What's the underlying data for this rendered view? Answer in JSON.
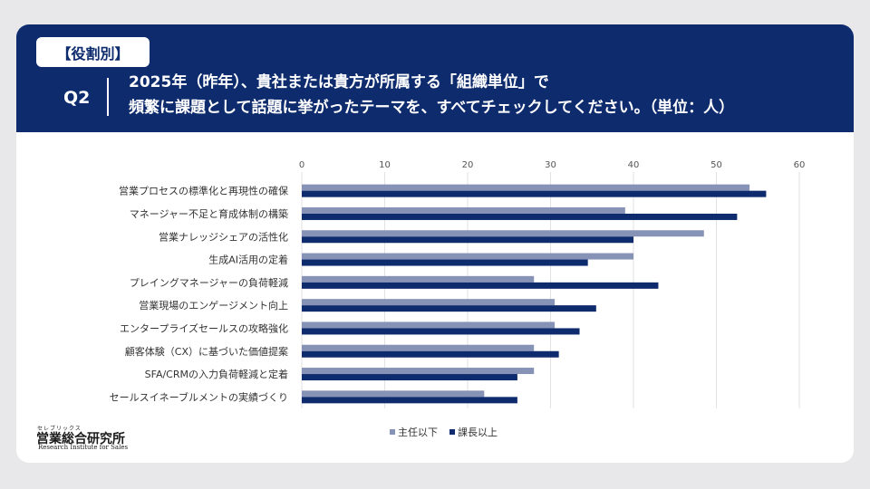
{
  "header": {
    "tag": "【役割別】",
    "qnum": "Q2",
    "line1": "2025年（昨年）、貴社または貴方が所属する「組織単位」で",
    "line2": "頻繁に課題として話題に挙がったテーマを、すべてチェックしてください。（単位：人）"
  },
  "logo": {
    "small": "セレブリックス",
    "main": "営業総合研究所",
    "sub": "Research Institute for Sales"
  },
  "colors": {
    "header_bg": "#0d2b6d",
    "series1": "#8793b6",
    "series2": "#0d2b6d"
  },
  "chart_data": {
    "type": "bar",
    "orientation": "horizontal",
    "categories": [
      "営業プロセスの標準化と再現性の確保",
      "マネージャー不足と育成体制の構築",
      "営業ナレッジシェアの活性化",
      "生成AI活用の定着",
      "プレイングマネージャーの負荷軽減",
      "営業現場のエンゲージメント向上",
      "エンタープライズセールスの攻略強化",
      "顧客体験（CX）に基づいた価値提案",
      "SFA/CRMの入力負荷軽減と定着",
      "セールスイネーブルメントの実績づくり"
    ],
    "series": [
      {
        "name": "主任以下",
        "values": [
          54,
          39,
          48.5,
          40,
          28,
          30.5,
          30.5,
          28,
          28,
          22
        ]
      },
      {
        "name": "課長以上",
        "values": [
          56,
          52.5,
          40,
          34.5,
          43,
          35.5,
          33.5,
          31,
          26,
          26
        ]
      }
    ],
    "xlim": [
      0,
      60
    ],
    "xticks": [
      0,
      10,
      20,
      30,
      40,
      50,
      60
    ],
    "grid": true,
    "legend": "bottom"
  }
}
